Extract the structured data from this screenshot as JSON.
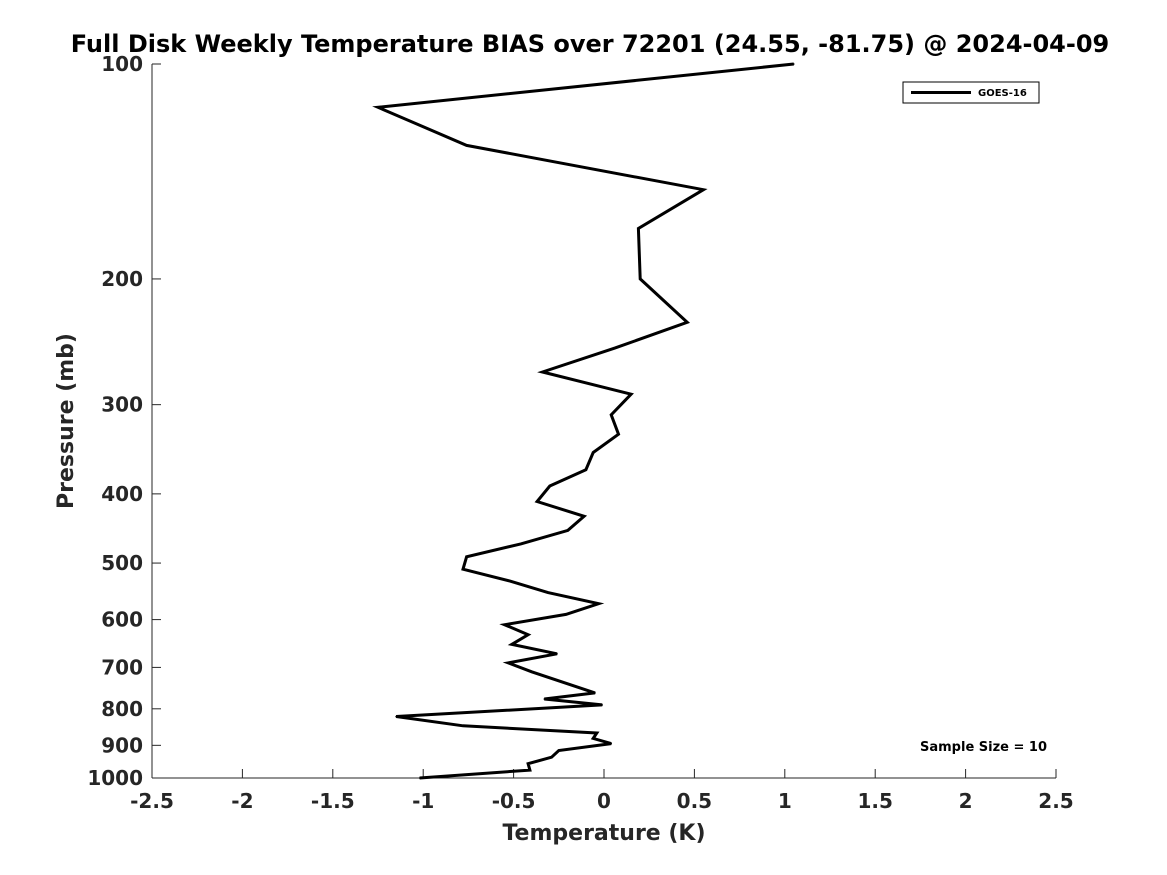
{
  "chart_data": {
    "type": "line",
    "title": "Full Disk Weekly Temperature BIAS over 72201 (24.55, -81.75) @ 2024-04-09",
    "xlabel": "Temperature (K)",
    "ylabel": "Pressure (mb)",
    "xlim": [
      -2.5,
      2.5
    ],
    "ylim": [
      100,
      1000
    ],
    "yscale": "log",
    "y_reversed": true,
    "x_ticks": [
      "-2.5",
      "-2",
      "-1.5",
      "-1",
      "-0.5",
      "0",
      "0.5",
      "1",
      "1.5",
      "2",
      "2.5"
    ],
    "y_ticks": [
      "100",
      "200",
      "300",
      "400",
      "500",
      "600",
      "700",
      "800",
      "900",
      "1000"
    ],
    "grid": false,
    "legend_position": "top-right",
    "annotation": "Sample Size = 10",
    "series": [
      {
        "name": "GOES-16",
        "color": "#000000",
        "points": [
          {
            "x": 1.05,
            "p": 100
          },
          {
            "x": -1.25,
            "p": 115
          },
          {
            "x": -0.76,
            "p": 130
          },
          {
            "x": 0.55,
            "p": 150
          },
          {
            "x": 0.19,
            "p": 170
          },
          {
            "x": 0.2,
            "p": 200
          },
          {
            "x": 0.46,
            "p": 230
          },
          {
            "x": 0.06,
            "p": 250
          },
          {
            "x": -0.34,
            "p": 270
          },
          {
            "x": 0.15,
            "p": 290
          },
          {
            "x": 0.04,
            "p": 310
          },
          {
            "x": 0.08,
            "p": 330
          },
          {
            "x": -0.06,
            "p": 350
          },
          {
            "x": -0.1,
            "p": 370
          },
          {
            "x": -0.3,
            "p": 390
          },
          {
            "x": -0.37,
            "p": 410
          },
          {
            "x": -0.11,
            "p": 430
          },
          {
            "x": -0.2,
            "p": 450
          },
          {
            "x": -0.46,
            "p": 470
          },
          {
            "x": -0.76,
            "p": 490
          },
          {
            "x": -0.78,
            "p": 510
          },
          {
            "x": -0.52,
            "p": 530
          },
          {
            "x": -0.31,
            "p": 550
          },
          {
            "x": -0.03,
            "p": 570
          },
          {
            "x": -0.21,
            "p": 590
          },
          {
            "x": -0.55,
            "p": 610
          },
          {
            "x": -0.42,
            "p": 630
          },
          {
            "x": -0.51,
            "p": 650
          },
          {
            "x": -0.26,
            "p": 670
          },
          {
            "x": -0.53,
            "p": 690
          },
          {
            "x": -0.4,
            "p": 710
          },
          {
            "x": -0.05,
            "p": 760
          },
          {
            "x": -0.33,
            "p": 775
          },
          {
            "x": -0.01,
            "p": 790
          },
          {
            "x": -1.15,
            "p": 820
          },
          {
            "x": -0.78,
            "p": 845
          },
          {
            "x": -0.04,
            "p": 865
          },
          {
            "x": -0.06,
            "p": 880
          },
          {
            "x": 0.04,
            "p": 895
          },
          {
            "x": -0.25,
            "p": 915
          },
          {
            "x": -0.29,
            "p": 935
          },
          {
            "x": -0.42,
            "p": 955
          },
          {
            "x": -0.41,
            "p": 975
          },
          {
            "x": -1.02,
            "p": 1000
          }
        ]
      }
    ]
  }
}
